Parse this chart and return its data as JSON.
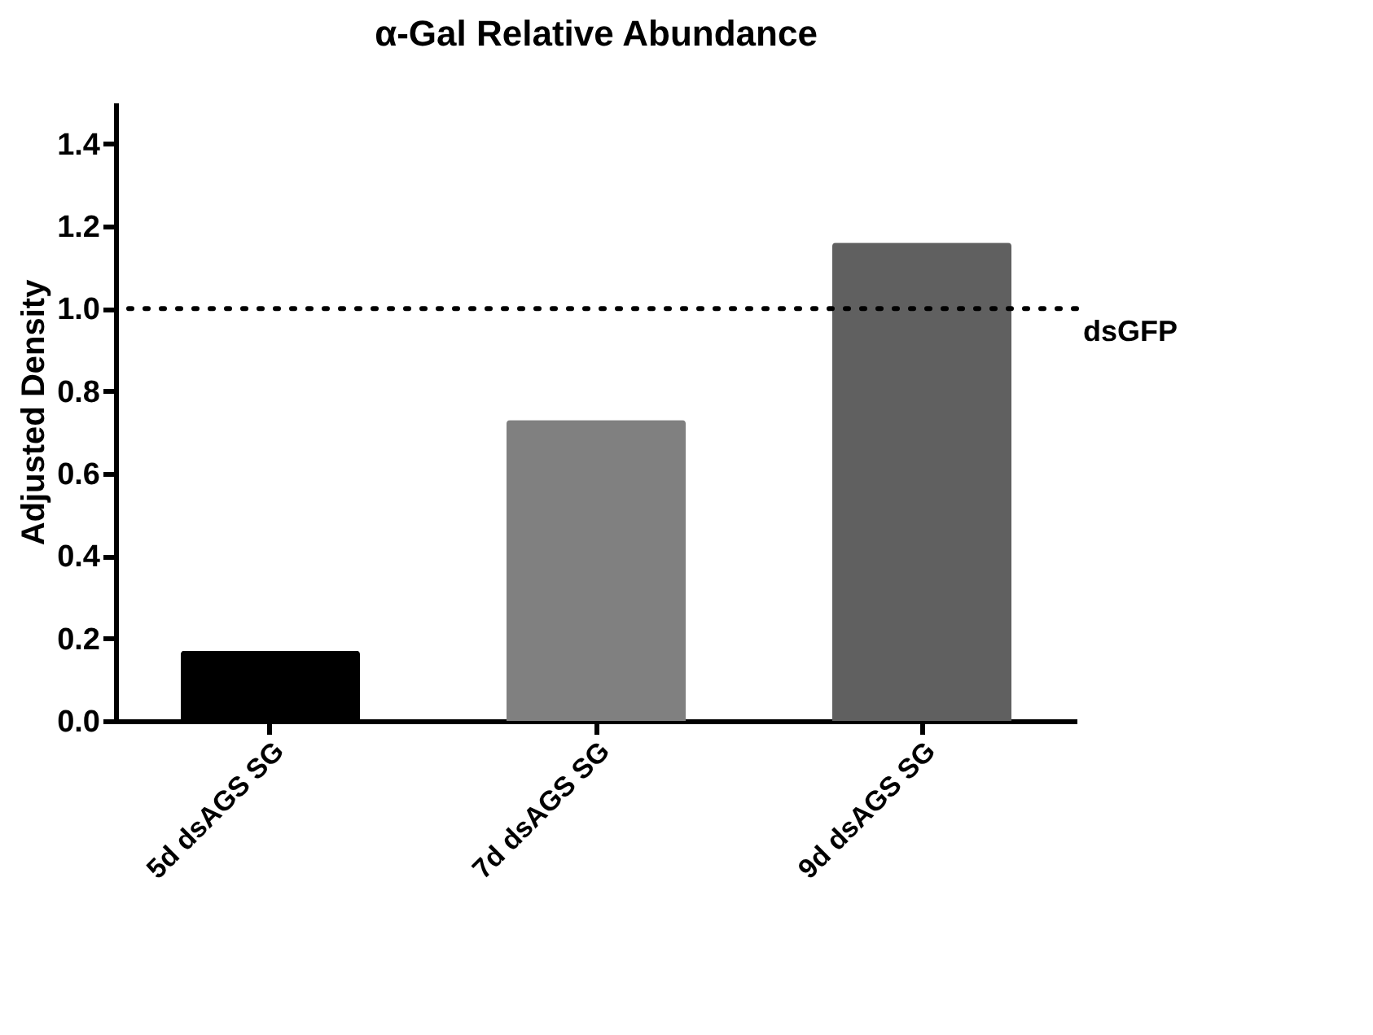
{
  "chart_data": {
    "type": "bar",
    "title": "α-Gal Relative Abundance",
    "ylabel": "Adjusted Density",
    "categories": [
      "5d dsAGS SG",
      "7d dsAGS SG",
      "9d dsAGS SG"
    ],
    "values": [
      0.17,
      0.73,
      1.16
    ],
    "colors": [
      "#000000",
      "#808080",
      "#606060"
    ],
    "ylim": [
      0,
      1.5
    ],
    "yticks": [
      {
        "value": 0.0,
        "label": "0.0"
      },
      0.2,
      0.4,
      0.6,
      0.8,
      {
        "value": 1.0,
        "label": "1.0"
      },
      1.2,
      1.4
    ],
    "ref_lines": [
      {
        "axis": "y",
        "value": 1.0,
        "label": "dsGFP",
        "color": "#000000",
        "line_style": "dotted"
      }
    ],
    "grid": false,
    "legend": false
  }
}
